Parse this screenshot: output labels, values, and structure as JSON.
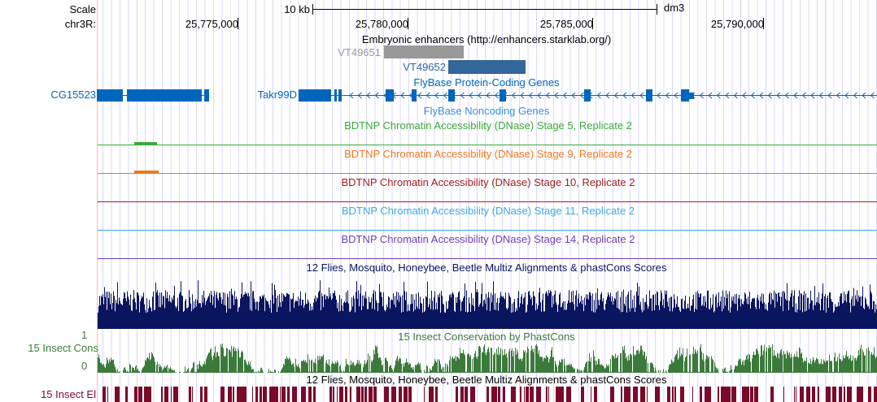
{
  "header": {
    "scale_label": "Scale",
    "chrom_label": "chr3R:",
    "scale_bar_label": "10 kb",
    "assembly": "dm3",
    "ticks": [
      "25,775,000",
      "25,780,000",
      "25,785,000",
      "25,790,000"
    ]
  },
  "tracks": {
    "enhancers": {
      "title": "Embryonic enhancers (http://enhancers.starklab.org/)",
      "items": [
        "VT49651",
        "VT49652"
      ],
      "colors": [
        "#999999",
        "#336699"
      ]
    },
    "protein_coding": {
      "title": "FlyBase Protein-Coding Genes",
      "genes": [
        "CG15523",
        "Takr99D"
      ],
      "color": "#0066bb"
    },
    "noncoding": {
      "title": "FlyBase Noncoding Genes"
    },
    "dnase": [
      {
        "title": "BDTNP Chromatin Accessibility (DNase) Stage 5, Replicate 2",
        "color": "#3aa83a"
      },
      {
        "title": "BDTNP Chromatin Accessibility (DNase) Stage 9, Replicate 2",
        "color": "#f07820"
      },
      {
        "title": "BDTNP Chromatin Accessibility (DNase) Stage 10, Replicate 2",
        "color": "#a02020"
      },
      {
        "title": "BDTNP Chromatin Accessibility (DNase) Stage 11, Replicate 2",
        "color": "#40a8e0"
      },
      {
        "title": "BDTNP Chromatin Accessibility (DNase) Stage 14, Replicate 2",
        "color": "#7040b0"
      }
    ],
    "multiz": {
      "title": "12 Flies, Mosquito, Honeybee, Beetle Multiz Alignments & phastCons Scores",
      "color": "#0a1560"
    },
    "phastcons": {
      "title": "15 Insect Conservation by PhastCons",
      "side_label": "15 Insect Cons",
      "ymax": "1",
      "ymin": "0",
      "color": "#3c7a3c"
    },
    "elements": {
      "title": "12 Flies, Mosquito, Honeybee, Beetle Multiz Alignments & phastCons Scores",
      "side_label": "15 Insect El",
      "color": "#7a0a2a"
    }
  }
}
